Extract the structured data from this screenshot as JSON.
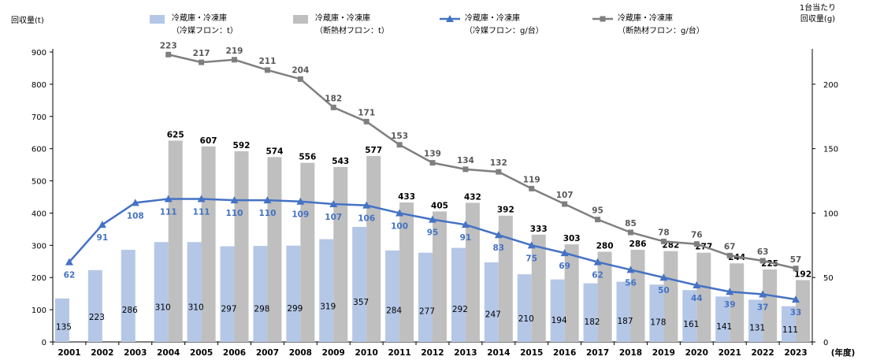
{
  "chart_data": {
    "type": "bar",
    "categories": [
      "2001",
      "2002",
      "2003",
      "2004",
      "2005",
      "2006",
      "2007",
      "2008",
      "2009",
      "2010",
      "2011",
      "2012",
      "2013",
      "2014",
      "2015",
      "2016",
      "2017",
      "2018",
      "2019",
      "2020",
      "2021",
      "2022",
      "2023"
    ],
    "series": [
      {
        "name": "冷蔵庫・冷凍庫\n（冷媒フロン：t）",
        "type": "bar",
        "axis": "left",
        "color": "#b4c7e7",
        "values": [
          135,
          223,
          286,
          310,
          310,
          297,
          298,
          299,
          319,
          357,
          284,
          277,
          292,
          247,
          210,
          194,
          182,
          187,
          178,
          161,
          141,
          131,
          111
        ]
      },
      {
        "name": "冷蔵庫・冷凍庫\n（断熱材フロン：t）",
        "type": "bar",
        "axis": "left",
        "color": "#bfbfbf",
        "values": [
          null,
          null,
          null,
          625,
          607,
          592,
          574,
          556,
          543,
          577,
          433,
          405,
          432,
          392,
          333,
          303,
          280,
          286,
          282,
          277,
          244,
          225,
          192
        ]
      },
      {
        "name": "冷蔵庫・冷凍庫\n（冷媒フロン：g/台）",
        "type": "line",
        "axis": "right",
        "color": "#4472c4",
        "marker": "triangle",
        "values": [
          62,
          91,
          108,
          111,
          111,
          110,
          110,
          109,
          107,
          106,
          100,
          95,
          91,
          83,
          75,
          69,
          62,
          56,
          50,
          44,
          39,
          37,
          33
        ]
      },
      {
        "name": "冷蔵庫・冷凍庫\n（断熱材フロン：g/台）",
        "type": "line",
        "axis": "right",
        "color": "#7f7f7f",
        "marker": "square",
        "values": [
          null,
          null,
          null,
          223,
          217,
          219,
          211,
          204,
          182,
          171,
          153,
          139,
          134,
          132,
          119,
          107,
          95,
          85,
          78,
          76,
          67,
          63,
          57
        ]
      }
    ],
    "ylabel_left": "回収量(t)",
    "ylabel_right": "1台当たり\n回収量(g)",
    "xlabel": "(年度)",
    "ylim_left": [
      0,
      900
    ],
    "yticks_left": [
      0,
      100,
      200,
      300,
      400,
      500,
      600,
      700,
      800,
      900
    ],
    "ylim_right": [
      0,
      225
    ],
    "yticks_right": [
      0,
      50,
      100,
      150,
      200
    ],
    "legend_position": "top",
    "grid": false
  }
}
